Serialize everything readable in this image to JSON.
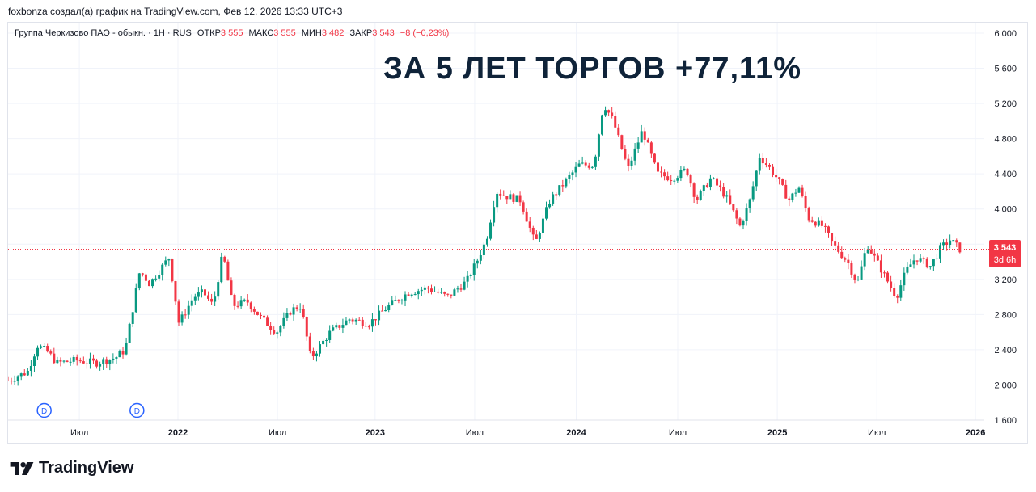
{
  "author_line": "foxbonza создал(а) график на TradingView.com, Фев 12, 2026 13:33 UTC+3",
  "legend": {
    "symbol": "Группа Черкизово ПАО - обыкн. · 1H · RUS",
    "open_label": "ОТКР",
    "open_value": "3 555",
    "high_label": "МАКС",
    "high_value": "3 555",
    "low_label": "МИН",
    "low_value": "3 482",
    "close_label": "ЗАКР",
    "close_value": "3 543",
    "change": "−8 (−0,23%)"
  },
  "headline": "ЗА 5 ЛЕТ ТОРГОВ +77,11%",
  "price_tag": {
    "price": "3 543",
    "countdown": "3d 6h"
  },
  "brand": "TradingView",
  "colors": {
    "up": "#089981",
    "down": "#f23645",
    "dividend": "#2962ff",
    "headline": "#0f2339"
  },
  "chart_data": {
    "type": "candlestick",
    "title": "ЗА 5 ЛЕТ ТОРГОВ +77,11%",
    "ylim": [
      1600,
      6000
    ],
    "y_ticks": [
      1600,
      2000,
      2400,
      2800,
      3200,
      3600,
      4000,
      4400,
      4800,
      5200,
      5600,
      6000
    ],
    "y_tick_labels": [
      "1 600",
      "2 000",
      "2 400",
      "2 800",
      "3 200",
      "3 600",
      "4 000",
      "4 400",
      "4 800",
      "5 200",
      "5 600",
      "6 000"
    ],
    "x_tick_labels": [
      {
        "t": 0.073,
        "label": "Июл",
        "bold": false
      },
      {
        "t": 0.174,
        "label": "2022",
        "bold": true
      },
      {
        "t": 0.276,
        "label": "Июл",
        "bold": false
      },
      {
        "t": 0.376,
        "label": "2023",
        "bold": true
      },
      {
        "t": 0.478,
        "label": "Июл",
        "bold": false
      },
      {
        "t": 0.582,
        "label": "2024",
        "bold": true
      },
      {
        "t": 0.686,
        "label": "Июл",
        "bold": false
      },
      {
        "t": 0.788,
        "label": "2025",
        "bold": true
      },
      {
        "t": 0.89,
        "label": "Июл",
        "bold": false
      },
      {
        "t": 0.991,
        "label": "2026",
        "bold": true
      }
    ],
    "last_price": 3543,
    "dividend_markers": [
      {
        "t": 0.037,
        "label": "D"
      },
      {
        "t": 0.132,
        "label": "D"
      }
    ],
    "price_path": [
      [
        0.0,
        2050
      ],
      [
        0.02,
        2150
      ],
      [
        0.03,
        2450
      ],
      [
        0.04,
        2380
      ],
      [
        0.05,
        2250
      ],
      [
        0.07,
        2280
      ],
      [
        0.09,
        2250
      ],
      [
        0.11,
        2310
      ],
      [
        0.12,
        2400
      ],
      [
        0.125,
        2700
      ],
      [
        0.135,
        3300
      ],
      [
        0.145,
        3150
      ],
      [
        0.155,
        3300
      ],
      [
        0.165,
        3450
      ],
      [
        0.175,
        2700
      ],
      [
        0.19,
        3000
      ],
      [
        0.2,
        3050
      ],
      [
        0.21,
        2900
      ],
      [
        0.22,
        3500
      ],
      [
        0.23,
        2900
      ],
      [
        0.245,
        2950
      ],
      [
        0.26,
        2750
      ],
      [
        0.275,
        2600
      ],
      [
        0.29,
        2850
      ],
      [
        0.3,
        2900
      ],
      [
        0.31,
        2300
      ],
      [
        0.33,
        2600
      ],
      [
        0.35,
        2750
      ],
      [
        0.37,
        2700
      ],
      [
        0.39,
        2900
      ],
      [
        0.41,
        3050
      ],
      [
        0.43,
        3100
      ],
      [
        0.45,
        3000
      ],
      [
        0.47,
        3180
      ],
      [
        0.48,
        3400
      ],
      [
        0.49,
        3650
      ],
      [
        0.5,
        4200
      ],
      [
        0.51,
        4150
      ],
      [
        0.525,
        4100
      ],
      [
        0.54,
        3600
      ],
      [
        0.555,
        4100
      ],
      [
        0.57,
        4300
      ],
      [
        0.585,
        4500
      ],
      [
        0.6,
        4500
      ],
      [
        0.61,
        5200
      ],
      [
        0.62,
        5000
      ],
      [
        0.635,
        4450
      ],
      [
        0.65,
        4900
      ],
      [
        0.665,
        4400
      ],
      [
        0.68,
        4350
      ],
      [
        0.695,
        4450
      ],
      [
        0.705,
        4100
      ],
      [
        0.72,
        4350
      ],
      [
        0.735,
        4150
      ],
      [
        0.75,
        3800
      ],
      [
        0.76,
        4100
      ],
      [
        0.77,
        4600
      ],
      [
        0.785,
        4400
      ],
      [
        0.8,
        4100
      ],
      [
        0.81,
        4250
      ],
      [
        0.82,
        3900
      ],
      [
        0.835,
        3800
      ],
      [
        0.845,
        3600
      ],
      [
        0.86,
        3400
      ],
      [
        0.87,
        3150
      ],
      [
        0.88,
        3600
      ],
      [
        0.89,
        3400
      ],
      [
        0.9,
        3200
      ],
      [
        0.91,
        3000
      ],
      [
        0.92,
        3300
      ],
      [
        0.93,
        3450
      ],
      [
        0.945,
        3350
      ],
      [
        0.955,
        3550
      ],
      [
        0.965,
        3650
      ],
      [
        0.975,
        3543
      ]
    ]
  }
}
